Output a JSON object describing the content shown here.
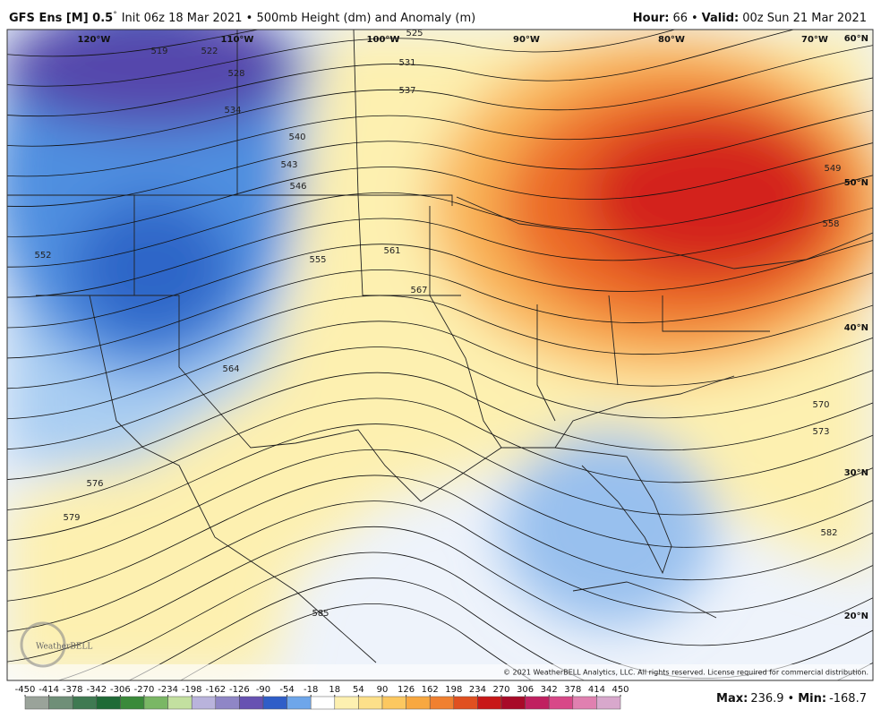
{
  "header": {
    "model": "GFS Ens [M] 0.5",
    "degree": "°",
    "init": "Init 06z 18 Mar 2021 • 500mb Height (dm) and Anomaly (m)",
    "hour_label": "Hour:",
    "hour": 66,
    "separator": "•",
    "valid_label": "Valid:",
    "valid": "00z Sun 21 Mar 2021"
  },
  "map": {
    "longitude_labels": [
      "120°W",
      "110°W",
      "100°W",
      "90°W",
      "80°W",
      "70°W"
    ],
    "latitude_labels": [
      "60°N",
      "50°N",
      "40°N",
      "30°N",
      "20°N"
    ],
    "contour_labels": [
      "519",
      "522",
      "525",
      "528",
      "531",
      "534",
      "537",
      "540",
      "543",
      "546",
      "549",
      "552",
      "555",
      "558",
      "561",
      "564",
      "567",
      "570",
      "573",
      "576",
      "579",
      "582",
      "585"
    ]
  },
  "colorbar": {
    "ticks": [
      -450,
      -414,
      -378,
      -342,
      -306,
      -270,
      -234,
      -198,
      -162,
      -126,
      -90,
      -54,
      -18,
      18,
      54,
      90,
      126,
      162,
      198,
      234,
      270,
      306,
      342,
      378,
      414,
      450
    ],
    "colors": [
      "#9aa39a",
      "#6f8f78",
      "#3f7a52",
      "#1f6a36",
      "#3a8a3a",
      "#7ab765",
      "#c3e0a0",
      "#b9b3dc",
      "#8f86c6",
      "#6752b2",
      "#2f5ec8",
      "#6ea6ea",
      "#ffffff",
      "#fdf0b0",
      "#fde08a",
      "#fcc860",
      "#f8a840",
      "#f08030",
      "#e05020",
      "#c81818",
      "#a80a28",
      "#c02060",
      "#d84888",
      "#e080b0",
      "#d8a8cc"
    ]
  },
  "footer": {
    "copyright": "© 2021 WeatherBELL Analytics, LLC. All rights reserved. License required for commercial distribution.",
    "logo": "WeatherBELL",
    "max_label": "Max:",
    "max": 236.9,
    "min_label": "Min:",
    "min": -168.7
  }
}
